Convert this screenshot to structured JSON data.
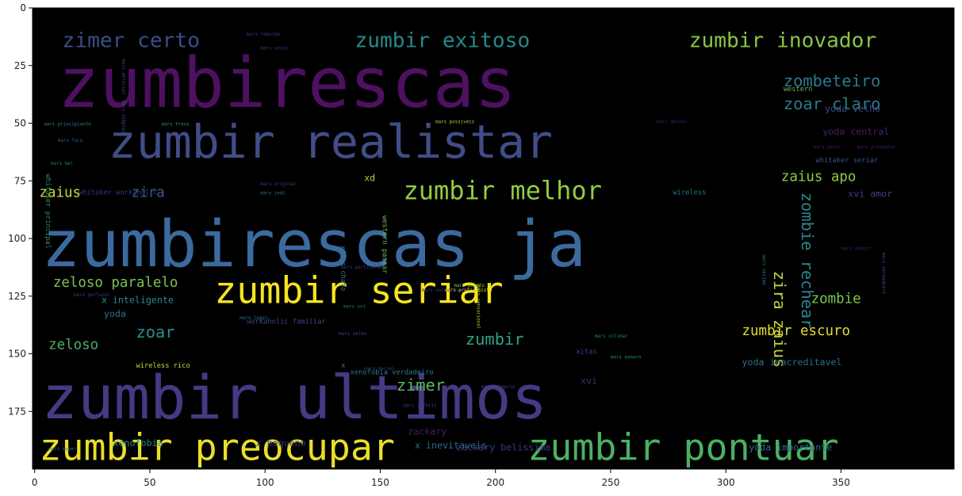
{
  "chart_data": {
    "type": "wordcloud",
    "xlim": [
      0,
      400
    ],
    "ylim": [
      200,
      0
    ],
    "x_ticks": [
      0,
      50,
      100,
      150,
      200,
      250,
      300,
      350
    ],
    "y_ticks": [
      0,
      25,
      50,
      75,
      100,
      125,
      150,
      175
    ],
    "background": "#000000",
    "words": [
      {
        "text": "zumbirescas",
        "color": "#4e1060"
      },
      {
        "text": "zumbirescas ja",
        "color": "#3b6a9e"
      },
      {
        "text": "zumbir ultimos",
        "color": "#463a84"
      },
      {
        "text": "zumbir realistar",
        "color": "#414d87"
      },
      {
        "text": "zumbir seriar",
        "color": "#f5e51e"
      },
      {
        "text": "zumbir preocupar",
        "color": "#e9df2b"
      },
      {
        "text": "zumbir pontuar",
        "color": "#4cb064"
      },
      {
        "text": "zumbir melhor",
        "color": "#92cc41"
      },
      {
        "text": "zimer certo",
        "color": "#3b4e85"
      },
      {
        "text": "zumbir exitoso",
        "color": "#27898b"
      },
      {
        "text": "zumbir inovador",
        "color": "#8ac544"
      },
      {
        "text": "zombeteiro",
        "color": "#2a7a8c"
      },
      {
        "text": "zoar claro",
        "color": "#2b7a8e"
      },
      {
        "text": "zombie rechear",
        "color": "#2a868a"
      },
      {
        "text": "zira zaius",
        "color": "#c2d33c"
      },
      {
        "text": "zaius apo",
        "color": "#8ecd44"
      },
      {
        "text": "zaius",
        "color": "#cfdc3a"
      },
      {
        "text": "zira",
        "color": "#3b5d8c"
      },
      {
        "text": "zeloso paralelo",
        "color": "#7cc350"
      },
      {
        "text": "x inteligente",
        "color": "#2d8f8a"
      },
      {
        "text": "zoar",
        "color": "#2a8e8e"
      },
      {
        "text": "zeloso",
        "color": "#4cad65"
      },
      {
        "text": "zumbir",
        "color": "#30a387"
      },
      {
        "text": "zimer",
        "color": "#5ab860"
      },
      {
        "text": "zombie",
        "color": "#7ac84b"
      },
      {
        "text": "zumbir escuro",
        "color": "#e4de2b"
      },
      {
        "text": "yoda",
        "color": "#2f6d8e"
      },
      {
        "text": "xd",
        "color": "#b8d13c"
      },
      {
        "text": "xvi amor",
        "color": "#3d3f84"
      },
      {
        "text": "yoda velho",
        "color": "#3a4f86"
      },
      {
        "text": "yoda central",
        "color": "#4a1e66"
      },
      {
        "text": "whitaker seriar",
        "color": "#38528a"
      },
      {
        "text": "whitaker workaholic",
        "color": "#2a3f7a"
      },
      {
        "text": "whitaker principal",
        "color": "#3a8a5a"
      },
      {
        "text": "western passar",
        "color": "#6ab856"
      },
      {
        "text": "western",
        "color": "#6ab856"
      },
      {
        "text": "wireless",
        "color": "#2d738c"
      },
      {
        "text": "wireless rico",
        "color": "#c9d83a"
      },
      {
        "text": "xitas chato",
        "color": "#2b7f8b"
      },
      {
        "text": "xitas",
        "color": "#3a4485"
      },
      {
        "text": "xvi",
        "color": "#3f2d79"
      },
      {
        "text": "x",
        "color": "#2a7a8b"
      },
      {
        "text": "xenofobia verdadeiro",
        "color": "#2c7a8a"
      },
      {
        "text": "yoda inacreditavel",
        "color": "#2a6e8c"
      },
      {
        "text": "x pequeno",
        "color": "#393a80"
      },
      {
        "text": "xenofobia",
        "color": "#2a8a8a"
      },
      {
        "text": "x inevitaveis",
        "color": "#2a6d8e"
      },
      {
        "text": "zackary",
        "color": "#4a1c6a"
      },
      {
        "text": "zackary belissima",
        "color": "#3b3a83"
      },
      {
        "text": "yoda importante",
        "color": "#2e6f8d"
      },
      {
        "text": "workaholic familiar",
        "color": "#3a4a86"
      },
      {
        "text": "mars unico",
        "color": "#3a3a7e"
      },
      {
        "text": "mars rebelde",
        "color": "#3e3480"
      },
      {
        "text": "mars anterior",
        "color": "#3a4286"
      },
      {
        "text": "mars simples",
        "color": "#3a4a86"
      },
      {
        "text": "mars principiante",
        "color": "#2a7a8c"
      },
      {
        "text": "mars fraco",
        "color": "#2a8a88"
      },
      {
        "text": "mars possiveis",
        "color": "#b8c83a"
      },
      {
        "text": "mars melhor",
        "color": "#4c1d66"
      },
      {
        "text": "mars falo",
        "color": "#2f5f8c"
      },
      {
        "text": "mars mal",
        "color": "#2a7a8c"
      },
      {
        "text": "mars original",
        "color": "#3a3a80"
      },
      {
        "text": "mars jedi",
        "color": "#2e6f8c"
      },
      {
        "text": "mars maior",
        "color": "#4a1b66"
      },
      {
        "text": "mars presentar",
        "color": "#4a1b66"
      },
      {
        "text": "mars sensacional",
        "color": "#9ec43a"
      },
      {
        "text": "mars protagonista",
        "color": "#e8de28"
      },
      {
        "text": "mars maravilhoso",
        "color": "#3a3a80"
      },
      {
        "text": "mars particular",
        "color": "#3a3a80"
      },
      {
        "text": "mars pronto",
        "color": "#8cc048"
      },
      {
        "text": "mars perfazer",
        "color": "#3a3a80"
      },
      {
        "text": "mars xvi",
        "color": "#2e7a8c"
      },
      {
        "text": "mars legal",
        "color": "#2e6f8c"
      },
      {
        "text": "mars velho",
        "color": "#3a4a86"
      },
      {
        "text": "mars ultimar",
        "color": "#2a7a8c"
      },
      {
        "text": "mars sonoro",
        "color": "#2a8a88"
      },
      {
        "text": "mars marxel",
        "color": "#3a3a80"
      },
      {
        "text": "mars proprio",
        "color": "#3a4a86"
      },
      {
        "text": "mars infeliz",
        "color": "#3a3a80"
      },
      {
        "text": "mars super",
        "color": "#2a6d8e"
      },
      {
        "text": "mars setimo",
        "color": "#2a7a8c"
      },
      {
        "text": "mars verdadeiro",
        "color": "#3a4a86"
      },
      {
        "text": "mars zumbir",
        "color": "#4a1b66"
      }
    ]
  }
}
